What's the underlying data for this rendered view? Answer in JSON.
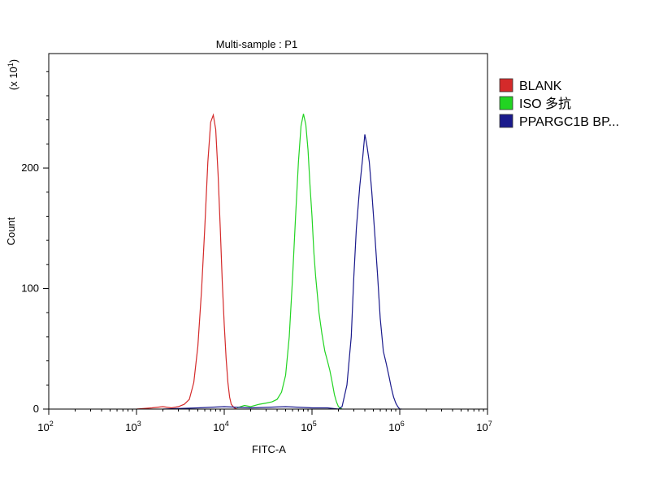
{
  "chart_data": {
    "type": "line",
    "title": "Multi-sample : P1",
    "xlabel": "FITC-A",
    "ylabel": "Count",
    "y_multiplier_label": "(x 10",
    "y_multiplier_exp": "1",
    "x_scale": "log",
    "xlim": [
      100,
      10000000
    ],
    "ylim": [
      0,
      295
    ],
    "x_ticks": [
      {
        "value": 100,
        "base": "10",
        "exp": "2"
      },
      {
        "value": 1000,
        "base": "10",
        "exp": "3"
      },
      {
        "value": 10000,
        "base": "10",
        "exp": "4"
      },
      {
        "value": 100000,
        "base": "10",
        "exp": "5"
      },
      {
        "value": 1000000,
        "base": "10",
        "exp": "6"
      },
      {
        "value": 10000000,
        "base": "10",
        "exp": "7"
      }
    ],
    "y_ticks": [
      0,
      100,
      200
    ],
    "legend_position": "right",
    "series": [
      {
        "name": "BLANK",
        "color": "#d42a2a",
        "x": [
          1000,
          1500,
          2000,
          2500,
          3000,
          3500,
          4000,
          4500,
          5000,
          5500,
          6000,
          6500,
          7000,
          7500,
          8000,
          8500,
          9000,
          9500,
          10000,
          10500,
          11000,
          11500,
          12000,
          13000,
          14000
        ],
        "y": [
          0,
          1,
          2,
          1,
          2,
          4,
          8,
          22,
          52,
          98,
          150,
          205,
          238,
          244,
          232,
          195,
          150,
          105,
          70,
          42,
          22,
          10,
          4,
          1,
          0
        ]
      },
      {
        "name": "ISO 多抗",
        "color": "#22d422",
        "x": [
          14000,
          17000,
          20000,
          25000,
          30000,
          35000,
          40000,
          45000,
          50000,
          55000,
          60000,
          65000,
          70000,
          75000,
          80000,
          85000,
          90000,
          95000,
          100000,
          105000,
          110000,
          115000,
          120000,
          130000,
          140000,
          150000,
          160000,
          170000,
          180000,
          190000,
          200000,
          220000
        ],
        "y": [
          1,
          3,
          2,
          4,
          5,
          6,
          8,
          14,
          28,
          60,
          108,
          160,
          205,
          235,
          245,
          236,
          215,
          185,
          160,
          130,
          110,
          95,
          80,
          62,
          48,
          40,
          32,
          22,
          12,
          6,
          2,
          0
        ]
      },
      {
        "name": "PPARGC1B BP...",
        "color": "#1a1a8c",
        "x": [
          2000,
          5000,
          10000,
          20000,
          50000,
          100000,
          150000,
          200000,
          220000,
          250000,
          280000,
          300000,
          320000,
          350000,
          380000,
          400000,
          420000,
          450000,
          480000,
          520000,
          560000,
          600000,
          650000,
          700000,
          750000,
          800000,
          850000,
          900000,
          950000,
          1000000,
          1050000
        ],
        "y": [
          0,
          1,
          2,
          1,
          2,
          1,
          1,
          0,
          2,
          20,
          60,
          110,
          150,
          185,
          210,
          228,
          220,
          205,
          180,
          145,
          110,
          75,
          48,
          38,
          28,
          18,
          10,
          5,
          2,
          0,
          0
        ]
      }
    ]
  }
}
